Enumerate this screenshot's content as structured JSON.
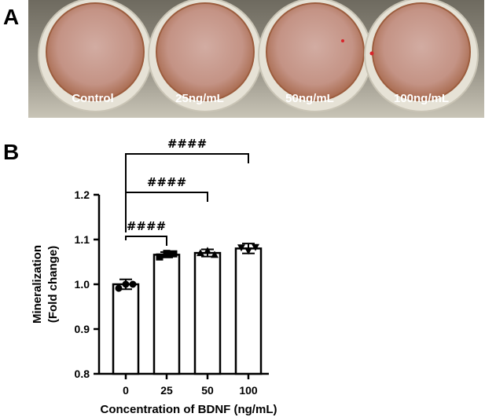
{
  "panels": {
    "a": "A",
    "b": "B"
  },
  "photo": {
    "wells": [
      "Control",
      "25ng/mL",
      "50ng/mL",
      "100ng/mL"
    ],
    "colors": {
      "background": "#8a8678",
      "well_inner": "#caa095",
      "well_edge": "#a86a4e",
      "text": "#ffffff"
    }
  },
  "chart_data": {
    "type": "bar",
    "categories": [
      "0",
      "25",
      "50",
      "100"
    ],
    "values": [
      1.0,
      1.066,
      1.07,
      1.08
    ],
    "errors": [
      0.011,
      0.006,
      0.008,
      0.011
    ],
    "points": [
      {
        "marker": "circle",
        "values": [
          0.991,
          1.0,
          1.0
        ]
      },
      {
        "marker": "square",
        "values": [
          1.061,
          1.069,
          1.068
        ]
      },
      {
        "marker": "triangle",
        "values": [
          1.07,
          1.075,
          1.066
        ]
      },
      {
        "marker": "triangle-down",
        "values": [
          1.082,
          1.075,
          1.083
        ]
      }
    ],
    "ylabel_lines": [
      "Mineralization",
      "(Fold change)"
    ],
    "xlabel": "Concentration of BDNF (ng/mL)",
    "ylim": [
      0.8,
      1.2
    ],
    "yticks": [
      "0.8",
      "0.9",
      "1.0",
      "1.1",
      "1.2"
    ],
    "significance": [
      {
        "from": "0",
        "to": "25",
        "label": "####"
      },
      {
        "from": "0",
        "to": "50",
        "label": "####"
      },
      {
        "from": "0",
        "to": "100",
        "label": "####"
      }
    ],
    "grid": false,
    "colors": {
      "bar_fill": "#ffffff",
      "stroke": "#000000"
    }
  }
}
